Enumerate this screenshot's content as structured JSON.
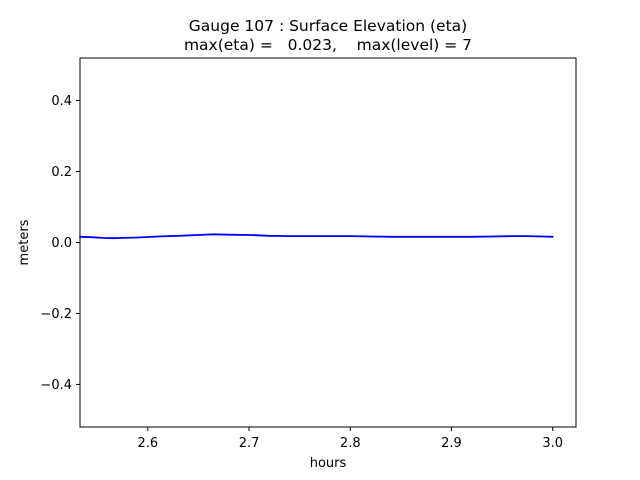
{
  "chart_data": {
    "type": "line",
    "title": "Gauge 107 : Surface Elevation (eta)",
    "subtitle": "max(eta) =   0.023,    max(level) = 7",
    "xlabel": "hours",
    "ylabel": "meters",
    "xlim": [
      2.533,
      3.023
    ],
    "ylim": [
      -0.52,
      0.52
    ],
    "x_ticks": [
      {
        "value": 2.6,
        "label": "2.6"
      },
      {
        "value": 2.7,
        "label": "2.7"
      },
      {
        "value": 2.8,
        "label": "2.8"
      },
      {
        "value": 2.9,
        "label": "2.9"
      },
      {
        "value": 3.0,
        "label": "3.0"
      }
    ],
    "y_ticks": [
      {
        "value": -0.4,
        "label": "−0.4"
      },
      {
        "value": -0.2,
        "label": "−0.2"
      },
      {
        "value": 0.0,
        "label": "0.0"
      },
      {
        "value": 0.2,
        "label": "0.2"
      },
      {
        "value": 0.4,
        "label": "0.4"
      }
    ],
    "grid": false,
    "series": [
      {
        "color": "#0000ff",
        "x": [
          2.533,
          2.545,
          2.555,
          2.565,
          2.575,
          2.59,
          2.61,
          2.63,
          2.65,
          2.665,
          2.68,
          2.7,
          2.72,
          2.74,
          2.76,
          2.78,
          2.8,
          2.82,
          2.84,
          2.86,
          2.88,
          2.9,
          2.92,
          2.94,
          2.96,
          2.975,
          2.99,
          3.0
        ],
        "y": [
          0.016,
          0.015,
          0.013,
          0.012,
          0.013,
          0.014,
          0.017,
          0.019,
          0.021,
          0.023,
          0.022,
          0.021,
          0.019,
          0.018,
          0.018,
          0.018,
          0.018,
          0.017,
          0.016,
          0.016,
          0.016,
          0.016,
          0.016,
          0.017,
          0.018,
          0.018,
          0.017,
          0.016
        ]
      }
    ]
  }
}
